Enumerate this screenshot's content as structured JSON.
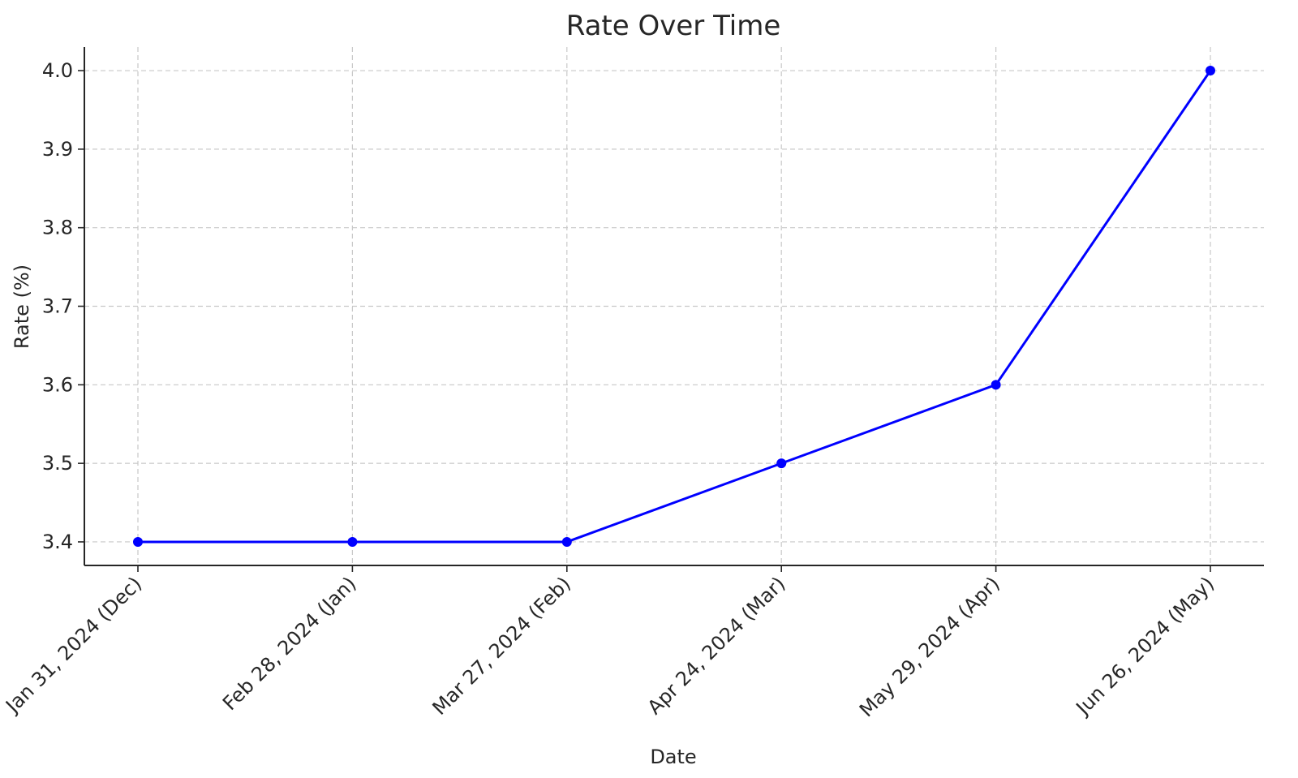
{
  "chart_data": {
    "type": "line",
    "title": "Rate Over Time",
    "xlabel": "Date",
    "ylabel": "Rate (%)",
    "categories": [
      "Jan 31, 2024 (Dec)",
      "Feb 28, 2024 (Jan)",
      "Mar 27, 2024 (Feb)",
      "Apr 24, 2024 (Mar)",
      "May 29, 2024 (Apr)",
      "Jun 26, 2024 (May)"
    ],
    "series": [
      {
        "values": [
          3.4,
          3.4,
          3.4,
          3.5,
          3.6,
          4.0
        ],
        "color": "#0000ff",
        "marker": "circle"
      }
    ],
    "yticks": [
      "3.4",
      "3.5",
      "3.6",
      "3.7",
      "3.8",
      "3.9",
      "4.0"
    ],
    "ylim": [
      3.37,
      4.03
    ],
    "grid": true,
    "legend": "none"
  }
}
